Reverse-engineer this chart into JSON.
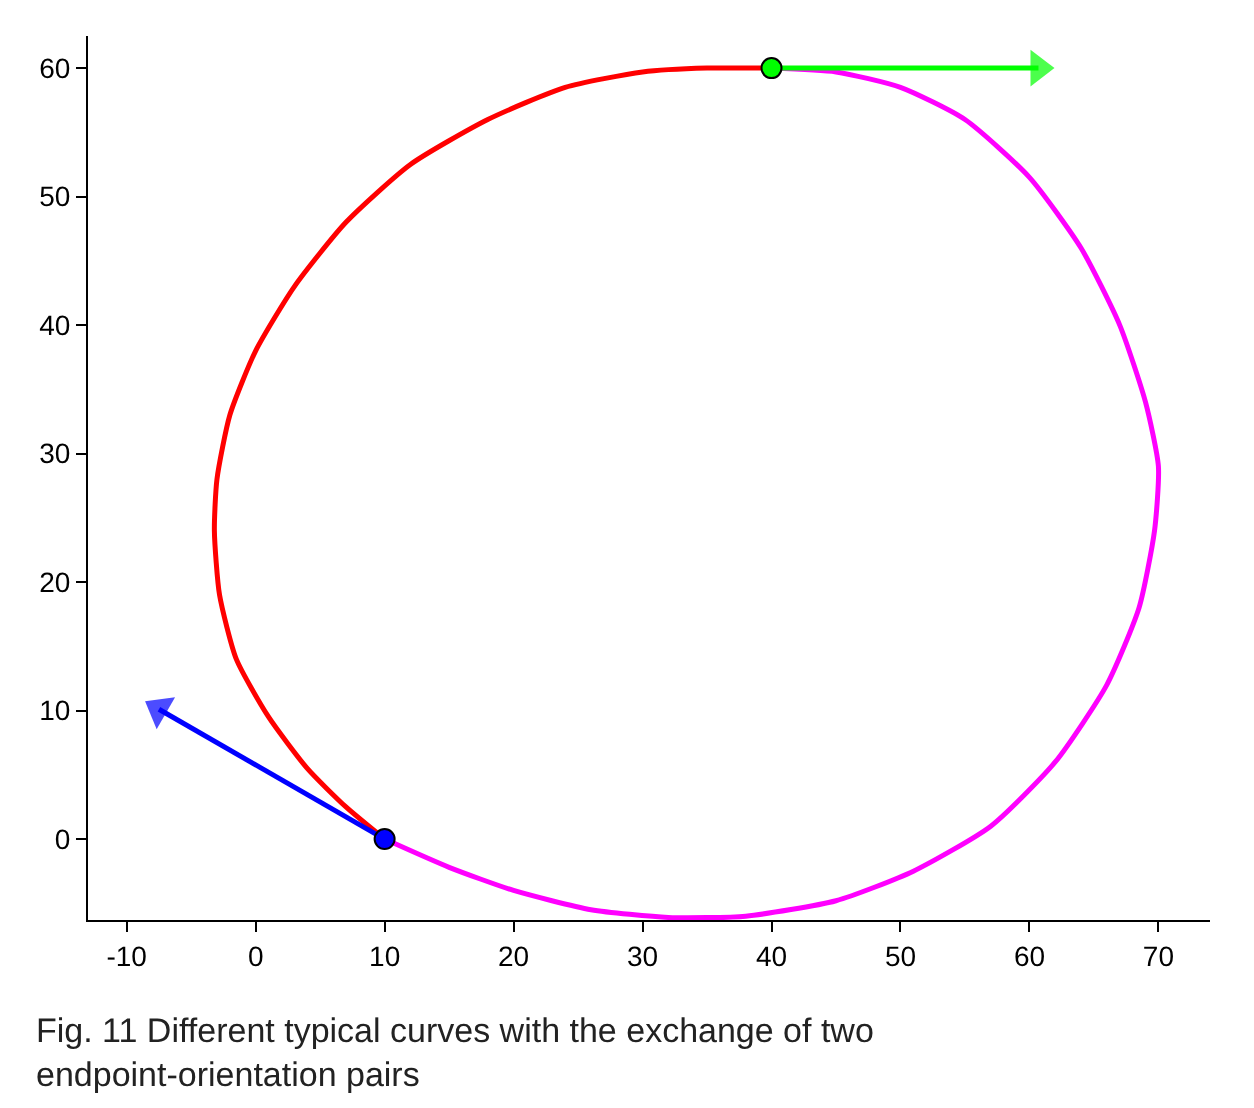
{
  "chart_data": {
    "type": "line",
    "xlim": [
      -13,
      74
    ],
    "ylim": [
      -6.3,
      62.5
    ],
    "xticks": [
      -10,
      0,
      10,
      20,
      30,
      40,
      50,
      60,
      70
    ],
    "yticks": [
      0,
      10,
      20,
      30,
      40,
      50,
      60
    ],
    "legend": false,
    "line_style": "solid",
    "series": [
      {
        "color": "#ff0000",
        "marker": "none",
        "x": [
          10,
          7,
          4,
          1,
          -1.5,
          -2.8,
          -3.2,
          -3,
          -2,
          0,
          3,
          7,
          12,
          18,
          24,
          30,
          35,
          40
        ],
        "values": [
          0,
          2.5,
          5.5,
          9.5,
          14,
          19,
          24,
          28,
          33,
          38,
          43,
          48,
          52.5,
          56,
          58.5,
          59.7,
          60,
          60
        ]
      },
      {
        "color": "#ff00ff",
        "marker": "none",
        "x": [
          40,
          45,
          50,
          55,
          60,
          64,
          67,
          69,
          70,
          69.7,
          68.5,
          66,
          62,
          57,
          51,
          45,
          38,
          32,
          26,
          20,
          15,
          10
        ],
        "values": [
          60,
          59.7,
          58.5,
          56,
          51.5,
          46,
          40,
          34,
          29,
          24,
          18,
          12,
          6,
          1,
          -2.5,
          -4.8,
          -6,
          -6.1,
          -5.5,
          -4,
          -2.2,
          0
        ]
      },
      {
        "color": "#0000ff",
        "marker": "triangle",
        "x": [
          10,
          -7.5
        ],
        "values": [
          0,
          10.1
        ]
      },
      {
        "color": "#00ff00",
        "marker": "triangle",
        "x": [
          40,
          60.7
        ],
        "values": [
          60,
          60
        ]
      },
      {
        "type": "scatter",
        "color": "#0000ff",
        "marker": "circle",
        "x": [
          10
        ],
        "values": [
          0
        ]
      },
      {
        "type": "scatter",
        "color": "#00ff00",
        "marker": "circle",
        "x": [
          40
        ],
        "values": [
          60
        ]
      }
    ],
    "annotations": [
      "Fig. 11 Different typical curves with the exchange of two endpoint-orientation pairs"
    ]
  }
}
